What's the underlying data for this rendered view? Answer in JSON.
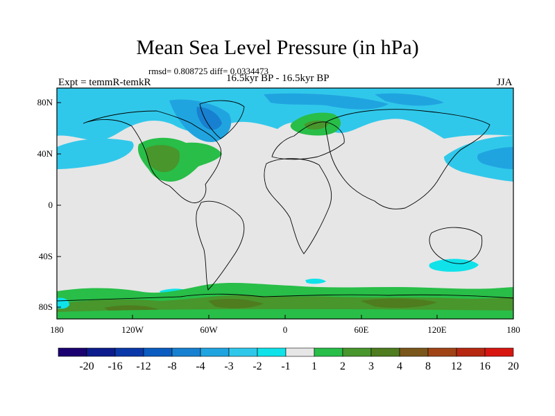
{
  "title": "Mean Sea Level Pressure (in hPa)",
  "stats": "rmsd= 0.808725 diff= 0.0334473",
  "experiment": "Expt = temmR-temkR",
  "period": "16.5kyr BP - 16.5kyr BP",
  "season": "JJA",
  "lat_labels": [
    "80N",
    "40N",
    "0",
    "40S",
    "80S"
  ],
  "lon_labels": [
    "180",
    "120W",
    "60W",
    "0",
    "60E",
    "120E",
    "180"
  ],
  "colorbar": {
    "labels": [
      "-20",
      "-16",
      "-12",
      "-8",
      "-4",
      "-3",
      "-2",
      "-1",
      "1",
      "2",
      "3",
      "4",
      "8",
      "12",
      "16",
      "20"
    ],
    "colors": [
      "#1a0070",
      "#0c1c8c",
      "#0a38a8",
      "#0a5cc0",
      "#1880d0",
      "#20a4e0",
      "#30c8ea",
      "#10e2ea",
      "#e6e6e6",
      "#28be48",
      "#48962c",
      "#4e7c1e",
      "#7a561a",
      "#a04416",
      "#b62810",
      "#d81610"
    ]
  },
  "colors": {
    "map_background": "#e6e6e6",
    "light_blue": "#30c8ea",
    "cyan": "#10e2ea",
    "mid_blue": "#20a4e0",
    "blue": "#1880d0",
    "green": "#28be48",
    "dark_green": "#48962c",
    "olive": "#4e7c1e"
  }
}
